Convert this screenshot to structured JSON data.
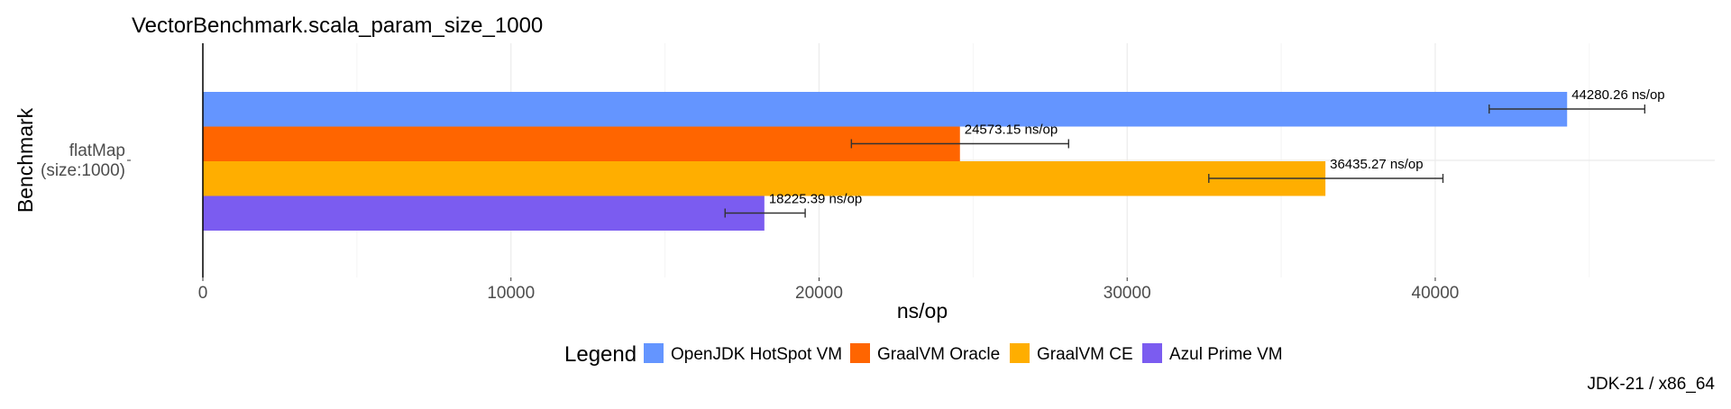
{
  "chart_data": {
    "type": "bar",
    "orientation": "horizontal",
    "title": "VectorBenchmark.scala_param_size_1000",
    "xlabel": "ns/op",
    "ylabel": "Benchmark",
    "categories": [
      "flatMap\n(size:1000)"
    ],
    "category_lines": [
      "flatMap",
      "(size:1000)"
    ],
    "xlim": [
      0,
      49000
    ],
    "xticks": [
      0,
      10000,
      20000,
      30000,
      40000
    ],
    "grid": true,
    "legend_position": "bottom",
    "legend_title": "Legend",
    "series": [
      {
        "name": "OpenJDK HotSpot VM",
        "color": "#6495FF",
        "values": [
          44280.26
        ],
        "error": [
          [
            41750,
            46800
          ]
        ],
        "label": "44280.26 ns/op"
      },
      {
        "name": "GraalVM Oracle",
        "color": "#FF6500",
        "values": [
          24573.15
        ],
        "error": [
          [
            21050,
            28100
          ]
        ],
        "label": "24573.15 ns/op"
      },
      {
        "name": "GraalVM CE",
        "color": "#FFAE00",
        "values": [
          36435.27
        ],
        "error": [
          [
            32650,
            40250
          ]
        ],
        "label": "36435.27 ns/op"
      },
      {
        "name": "Azul Prime VM",
        "color": "#7B5CF0",
        "values": [
          18225.39
        ],
        "error": [
          [
            16950,
            19550
          ]
        ],
        "label": "18225.39 ns/op"
      }
    ],
    "caption": "JDK-21 / x86_64"
  }
}
